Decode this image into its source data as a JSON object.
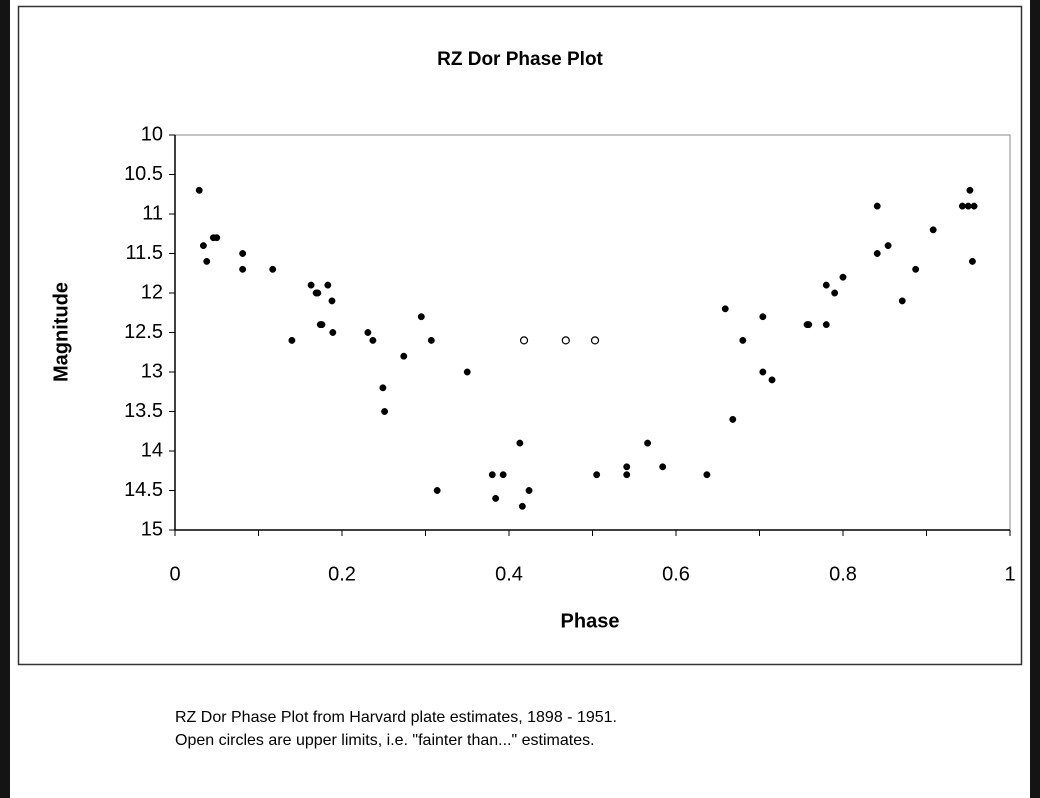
{
  "chart_data": {
    "type": "scatter",
    "title": "RZ Dor Phase Plot",
    "xlabel": "Phase",
    "ylabel": "Magnitude",
    "xlim": [
      0,
      1
    ],
    "xticks": [
      0,
      0.2,
      0.4,
      0.6,
      0.8,
      1
    ],
    "xminorticks": [
      0.1,
      0.3,
      0.5,
      0.7,
      0.9
    ],
    "ylim": [
      15,
      10
    ],
    "yticks": [
      10,
      10.5,
      11,
      11.5,
      12,
      12.5,
      13,
      13.5,
      14,
      14.5,
      15
    ],
    "series": [
      {
        "color": "#000000",
        "marker": "filled",
        "x": [
          0.029,
          0.034,
          0.038,
          0.046,
          0.05,
          0.081,
          0.081,
          0.117,
          0.14,
          0.163,
          0.169,
          0.171,
          0.183,
          0.188,
          0.174,
          0.176,
          0.189,
          0.231,
          0.237,
          0.274,
          0.295,
          0.307,
          0.249,
          0.251,
          0.314,
          0.35,
          0.38,
          0.393,
          0.384,
          0.413,
          0.416,
          0.424,
          0.505,
          0.541,
          0.541,
          0.566,
          0.584,
          0.637,
          0.659,
          0.668,
          0.68,
          0.704,
          0.704,
          0.715,
          0.757,
          0.759,
          0.78,
          0.78,
          0.79,
          0.8,
          0.841,
          0.841,
          0.854,
          0.871,
          0.887,
          0.908,
          0.943,
          0.95,
          0.952,
          0.957,
          0.955
        ],
        "values": [
          10.7,
          11.4,
          11.6,
          11.3,
          11.3,
          11.5,
          11.7,
          11.7,
          12.6,
          11.9,
          12.0,
          12.0,
          11.9,
          12.1,
          12.4,
          12.4,
          12.5,
          12.5,
          12.6,
          12.8,
          12.3,
          12.6,
          13.2,
          13.5,
          14.5,
          13.0,
          14.3,
          14.3,
          14.6,
          13.9,
          14.7,
          14.5,
          14.3,
          14.2,
          14.3,
          13.9,
          14.2,
          14.3,
          12.2,
          13.6,
          12.6,
          12.3,
          13.0,
          13.1,
          12.4,
          12.4,
          12.4,
          11.9,
          12.0,
          11.8,
          10.9,
          11.5,
          11.4,
          12.1,
          11.7,
          11.2,
          10.9,
          10.9,
          10.7,
          10.9,
          11.6
        ]
      },
      {
        "color": "#000000",
        "marker": "open",
        "x": [
          0.418,
          0.468,
          0.503
        ],
        "values": [
          12.6,
          12.6,
          12.6
        ]
      }
    ],
    "caption": [
      "RZ Dor Phase Plot from Harvard plate estimates, 1898 - 1951.",
      "Open circles are upper limits, i.e. \"fainter than...\" estimates."
    ]
  }
}
